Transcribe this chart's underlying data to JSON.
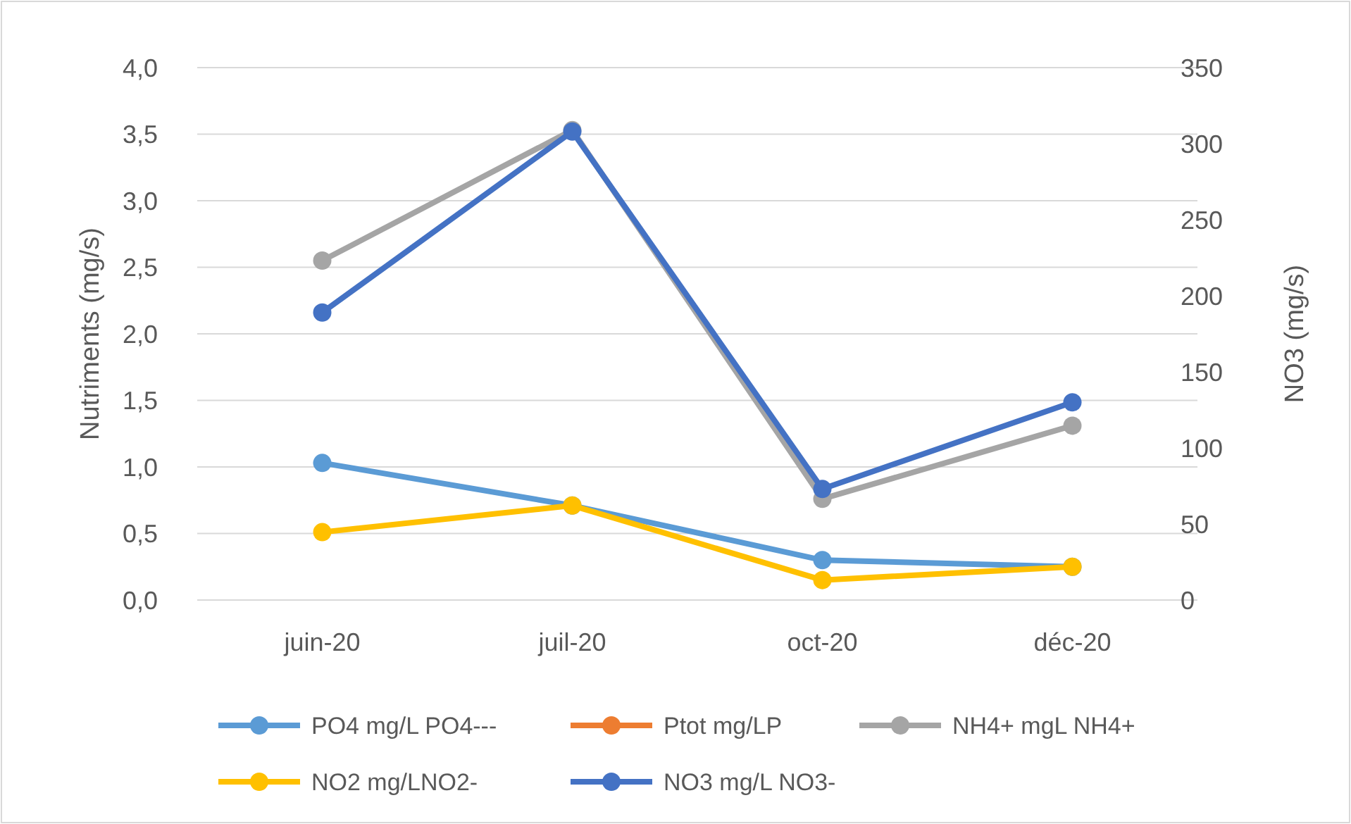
{
  "chart_data": {
    "type": "line",
    "ylabel": "Nutriments (mg/s)",
    "y2label": "NO3 (mg/s)",
    "categories": [
      "juin-20",
      "juil-20",
      "oct-20",
      "déc-20"
    ],
    "series": [
      {
        "name": "PO4 mg/L PO4---",
        "color": "#5b9bd5",
        "values": [
          1.03,
          0.71,
          0.3,
          0.25
        ]
      },
      {
        "name": "Ptot mg/LP",
        "color": "#ed7d31",
        "values": [
          null,
          null,
          null,
          null
        ]
      },
      {
        "name": "NH4+ mgL NH4+",
        "color": "#a5a5a5",
        "values": [
          2.55,
          3.53,
          0.76,
          1.31
        ]
      },
      {
        "name": "NO2 mg/LNO2-",
        "color": "#ffc000",
        "values": [
          0.51,
          0.71,
          0.15,
          0.25
        ]
      },
      {
        "name": "NO3 mg/L NO3-",
        "color": "#4472c4",
        "axis": "y2",
        "values": [
          189,
          308,
          73,
          130
        ]
      }
    ],
    "ylim": [
      0,
      4
    ],
    "yticks": [
      {
        "value": 0,
        "label": "0,0"
      },
      {
        "value": 0.5,
        "label": "0,5"
      },
      {
        "value": 1,
        "label": "1,0"
      },
      {
        "value": 1.5,
        "label": "1,5"
      },
      {
        "value": 2,
        "label": "2,0"
      },
      {
        "value": 2.5,
        "label": "2,5"
      },
      {
        "value": 3,
        "label": "3,0"
      },
      {
        "value": 3.5,
        "label": "3,5"
      },
      {
        "value": 4,
        "label": "4,0"
      }
    ],
    "y2lim": [
      0,
      350
    ],
    "y2ticks": [
      0,
      50,
      100,
      150,
      200,
      250,
      300,
      350
    ],
    "grid": "y",
    "legend": "bottom",
    "marker": "circle",
    "line_style": "solid"
  }
}
